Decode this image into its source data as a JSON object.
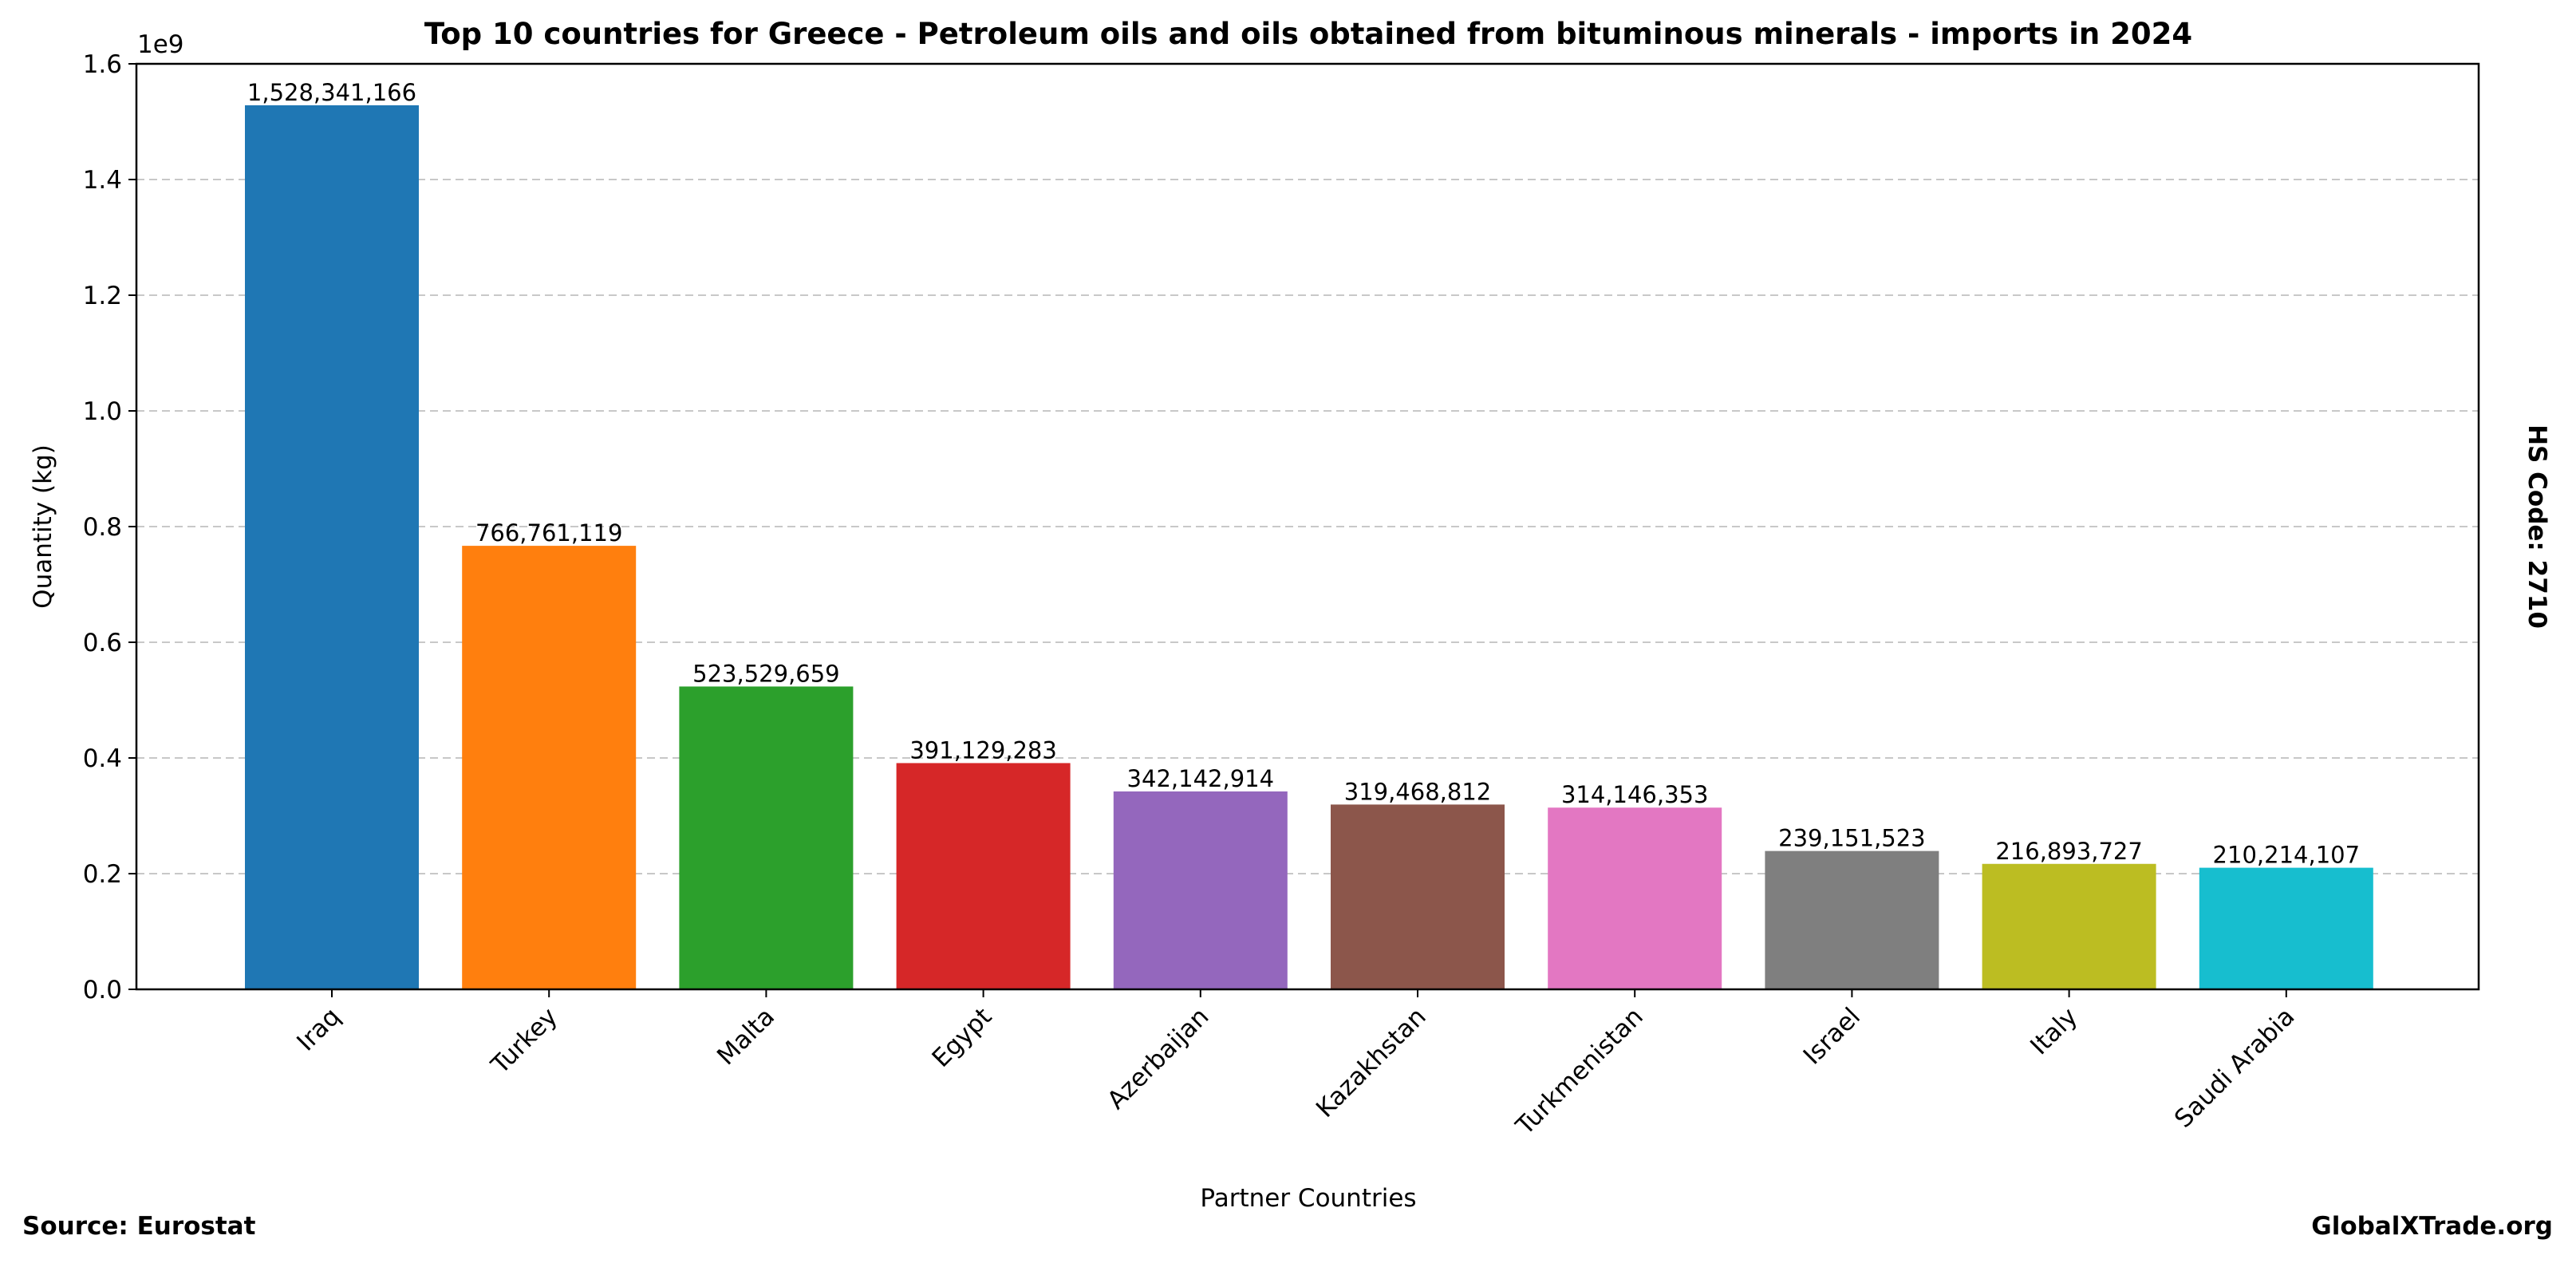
{
  "chart_data": {
    "type": "bar",
    "title": "Top 10 countries for Greece - Petroleum oils and oils obtained from bituminous minerals - imports in 2024",
    "xlabel": "Partner Countries",
    "ylabel": "Quantity (kg)",
    "y_offset_label": "1e9",
    "ylim": [
      0,
      1.6
    ],
    "y_scale": 1000000000,
    "yticks": [
      "0.0",
      "0.2",
      "0.4",
      "0.6",
      "0.8",
      "1.0",
      "1.2",
      "1.4",
      "1.6"
    ],
    "grid": "horizontal dashed",
    "categories": [
      "Iraq",
      "Turkey",
      "Malta",
      "Egypt",
      "Azerbaijan",
      "Kazakhstan",
      "Turkmenistan",
      "Israel",
      "Italy",
      "Saudi Arabia"
    ],
    "values": [
      1528341166,
      766761119,
      523529659,
      391129283,
      342142914,
      319468812,
      314146353,
      239151523,
      216893727,
      210214107
    ],
    "labels": [
      "1,528,341,166",
      "766,761,119",
      "523,529,659",
      "391,129,283",
      "342,142,914",
      "319,468,812",
      "314,146,353",
      "239,151,523",
      "216,893,727",
      "210,214,107"
    ],
    "colors": [
      "#1f77b4",
      "#ff7f0e",
      "#2ca02c",
      "#d62728",
      "#9467bd",
      "#8c564b",
      "#e377c2",
      "#7f7f7f",
      "#bcbd22",
      "#17becf"
    ]
  },
  "footer": {
    "source": "Source: Eurostat",
    "brand": "GlobalXTrade.org",
    "side_label": "HS Code: 2710"
  }
}
